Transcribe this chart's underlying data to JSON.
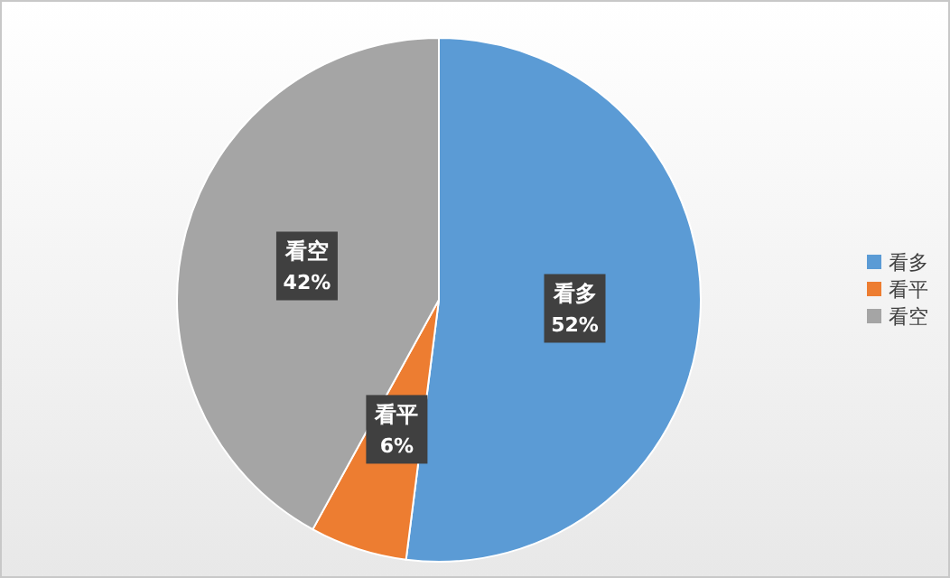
{
  "chart_data": {
    "type": "pie",
    "categories": [
      "看多",
      "看平",
      "看空"
    ],
    "values": [
      52,
      6,
      42
    ],
    "colors": [
      "#5b9bd5",
      "#ed7d31",
      "#a5a5a5"
    ],
    "value_labels": [
      "52%",
      "6%",
      "42%"
    ],
    "legend": "right"
  }
}
